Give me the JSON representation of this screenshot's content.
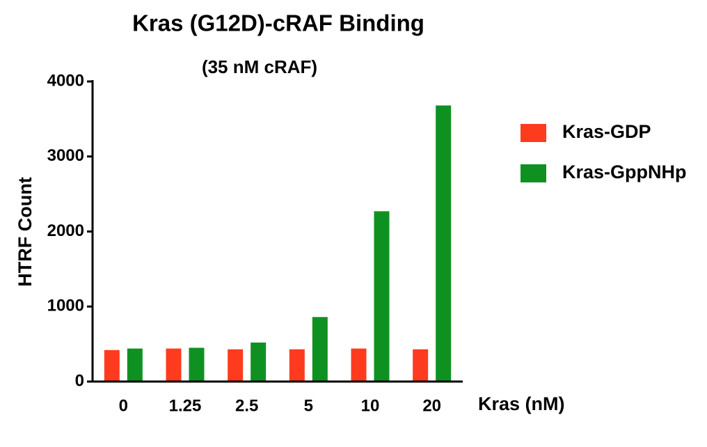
{
  "chart_data": {
    "type": "bar",
    "title": "Kras (G12D)-cRAF Binding",
    "subtitle": "(35 nM cRAF)",
    "x_label": "Kras (nM)",
    "y_label": "HTRF Count",
    "categories": [
      "0",
      "1.25",
      "2.5",
      "5",
      "10",
      "20"
    ],
    "series": [
      {
        "name": "Kras-GDP",
        "color": "#ff3b1f",
        "values": [
          420,
          440,
          430,
          430,
          440,
          430
        ]
      },
      {
        "name": "Kras-GppNHp",
        "color": "#0f9122",
        "values": [
          440,
          450,
          520,
          860,
          2270,
          3680
        ]
      }
    ],
    "ylim": [
      0,
      4000
    ],
    "yticks": [
      0,
      1000,
      2000,
      3000,
      4000
    ],
    "grid": false,
    "legend": "right"
  }
}
